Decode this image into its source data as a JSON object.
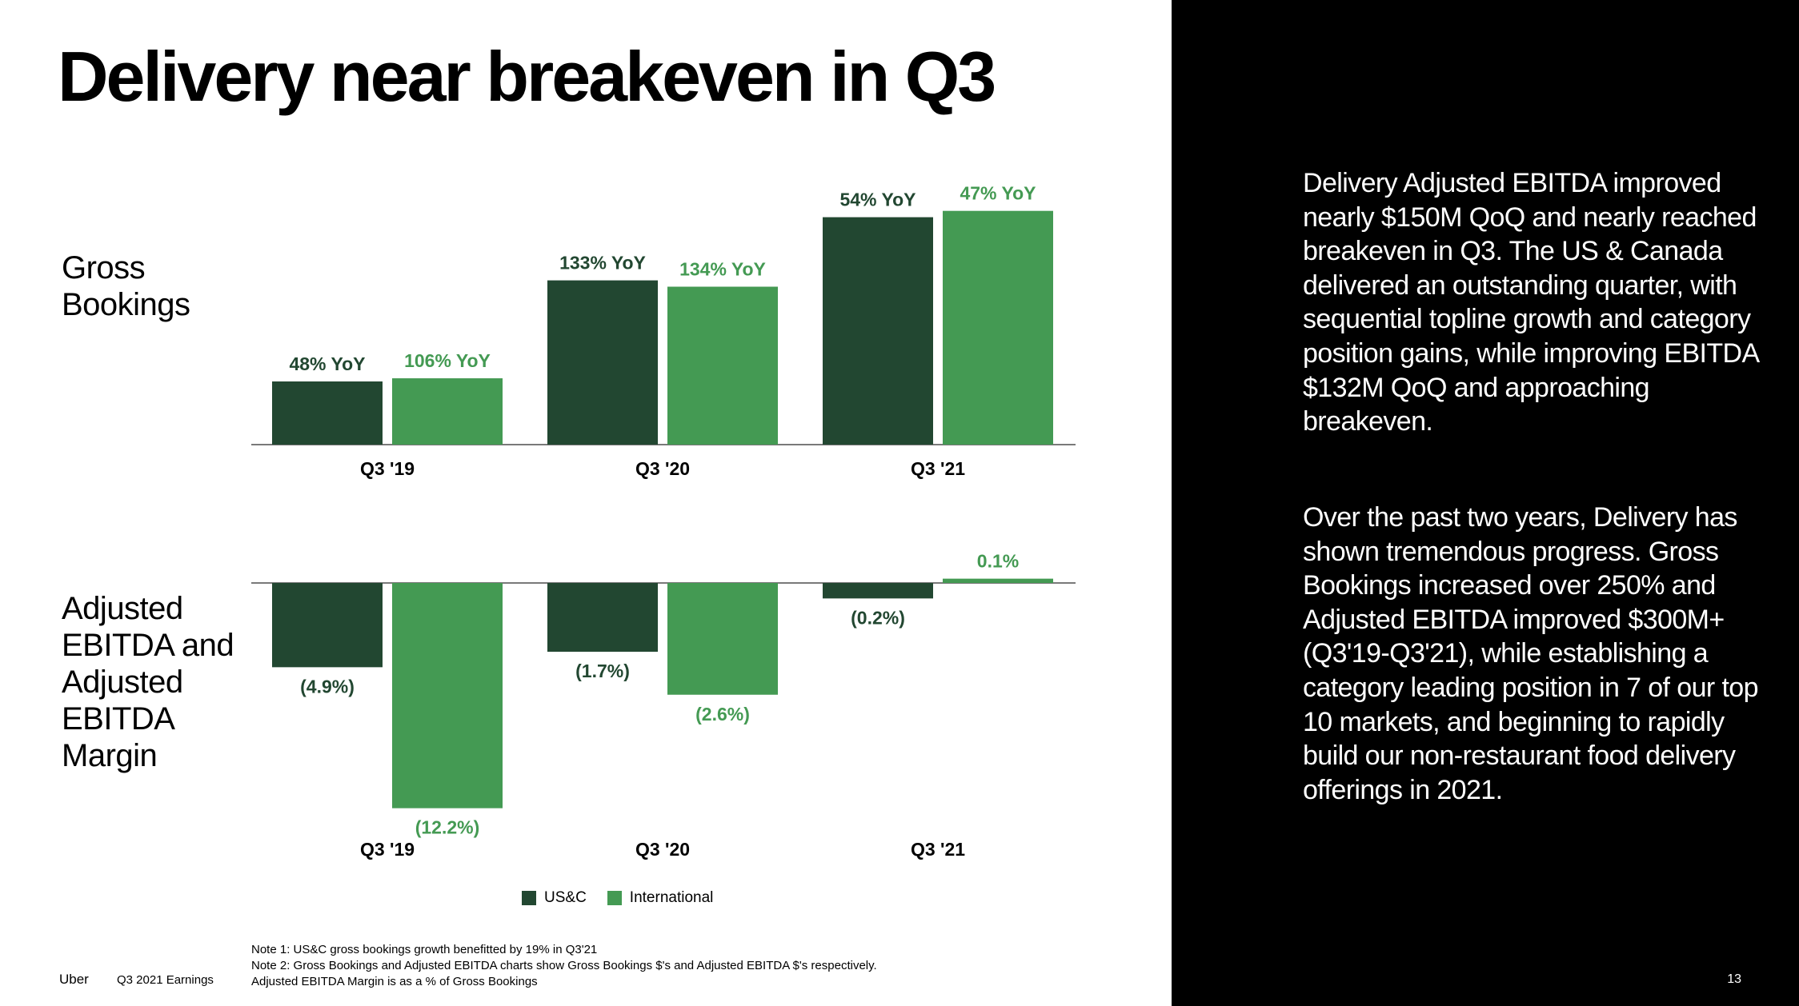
{
  "slide": {
    "title": "Delivery near breakeven in Q3",
    "page_number": "13",
    "footer_brand": "Uber",
    "footer_subtitle": "Q3 2021 Earnings"
  },
  "labels": {
    "gross_bookings": "Gross Bookings",
    "ebitda": "Adjusted EBITDA and Adjusted EBITDA Margin"
  },
  "legend": {
    "items": [
      {
        "label": "US&C",
        "color": "#224731"
      },
      {
        "label": "International",
        "color": "#449a53"
      }
    ]
  },
  "colors": {
    "usc": "#224731",
    "intl": "#449a53",
    "axis": "#4d4d4d",
    "panel_bg": "#000000"
  },
  "notes": [
    "Note 1: US&C gross bookings growth benefitted by 19% in Q3'21",
    "Note 2: Gross Bookings and Adjusted EBITDA charts show Gross Bookings $'s and Adjusted EBITDA $'s respectively.",
    "Adjusted EBITDA Margin is as a % of Gross Bookings"
  ],
  "right_panel": {
    "paragraph1": "Delivery Adjusted EBITDA improved nearly $150M QoQ and nearly reached breakeven in Q3. The US & Canada delivered an outstanding quarter, with sequential topline growth and category position gains, while improving EBITDA $132M QoQ and approaching breakeven.",
    "paragraph2": "Over the past two years, Delivery has shown tremendous progress. Gross Bookings increased over 250% and Adjusted EBITDA improved $300M+ (Q3'19-Q3'21), while establishing a category leading position in 7 of our top 10 markets, and beginning to rapidly build our non-restaurant food delivery offerings in 2021."
  },
  "chart_data": [
    {
      "type": "bar",
      "title": "Gross Bookings",
      "categories": [
        "Q3 '19",
        "Q3 '20",
        "Q3 '21"
      ],
      "series": [
        {
          "name": "US&C",
          "values": [
            1.0,
            2.6,
            3.6
          ],
          "labels": [
            "48% YoY",
            "133% YoY",
            "54% YoY"
          ]
        },
        {
          "name": "International",
          "values": [
            1.05,
            2.5,
            3.7
          ],
          "labels": [
            "106% YoY",
            "134% YoY",
            "47% YoY"
          ]
        }
      ],
      "ylim": [
        0,
        4.0
      ]
    },
    {
      "type": "bar",
      "title": "Adjusted EBITDA and Adjusted EBITDA Margin",
      "categories": [
        "Q3 '19",
        "Q3 '20",
        "Q3 '21"
      ],
      "series": [
        {
          "name": "US&C",
          "values": [
            -4.9,
            -4.0,
            -0.9
          ],
          "labels": [
            "(4.9%)",
            "(1.7%)",
            "(0.2%)"
          ]
        },
        {
          "name": "International",
          "values": [
            -13.1,
            -6.5,
            0.25
          ],
          "labels": [
            "(12.2%)",
            "(2.6%)",
            "0.1%"
          ]
        }
      ],
      "ylim": [
        -14,
        2
      ]
    }
  ]
}
